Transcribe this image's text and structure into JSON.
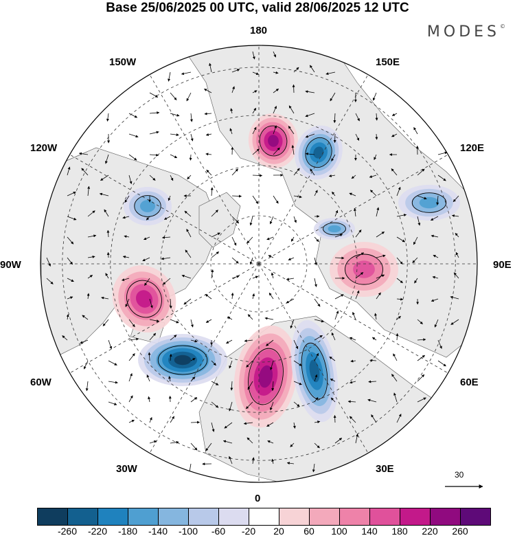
{
  "header": {
    "title": "Base 25/06/2025 00 UTC, valid 28/06/2025 12 UTC",
    "brand": "MODES"
  },
  "map": {
    "projection": "polar-stereographic-north",
    "longitude_labels": [
      "180",
      "150E",
      "120E",
      "90E",
      "60E",
      "30E",
      "0",
      "30W",
      "60W",
      "90W",
      "120W",
      "150W"
    ],
    "background_land_color": "#e9e9e9",
    "ocean_color": "#ffffff",
    "anomaly_centers": [
      {
        "region": "Bering Sea",
        "sign": "positive",
        "level": 220
      },
      {
        "region": "East Siberian Sea",
        "sign": "negative",
        "level": -220
      },
      {
        "region": "Central Siberia",
        "sign": "negative",
        "level": -140
      },
      {
        "region": "Kara Sea",
        "sign": "negative",
        "level": -140
      },
      {
        "region": "Central Asia",
        "sign": "positive",
        "level": 140
      },
      {
        "region": "Hudson Bay / Labrador",
        "sign": "positive",
        "level": 180
      },
      {
        "region": "North Atlantic",
        "sign": "negative",
        "level": -260
      },
      {
        "region": "Western Europe",
        "sign": "positive",
        "level": 220
      },
      {
        "region": "Scandinavia / Baltic",
        "sign": "negative",
        "level": -220
      },
      {
        "region": "Canadian Arctic",
        "sign": "negative",
        "level": -140
      }
    ]
  },
  "reference_vector": {
    "value": "30"
  },
  "colorbar": {
    "colors": [
      "#0f3d5e",
      "#13608f",
      "#1f82be",
      "#4f9fd1",
      "#85b6df",
      "#b8c9e9",
      "#dcdcf0",
      "#ffffff",
      "#f7d3d6",
      "#f3a9bb",
      "#ee82a9",
      "#e0519b",
      "#c3198a",
      "#900a7f",
      "#5e0a78"
    ],
    "ticks": [
      "-260",
      "-220",
      "-180",
      "-140",
      "-100",
      "-60",
      "-20",
      "20",
      "60",
      "100",
      "140",
      "180",
      "220",
      "260"
    ]
  }
}
